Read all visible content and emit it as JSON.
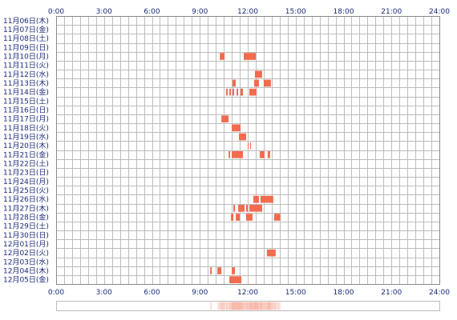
{
  "chart_data": {
    "type": "heatmap",
    "x_ticks": [
      "0:00",
      "3:00",
      "6:00",
      "9:00",
      "12:00",
      "15:00",
      "18:00",
      "21:00",
      "24:00"
    ],
    "xlim_hours": [
      0,
      24
    ],
    "grid": true,
    "bar_color": "#f26b4e",
    "summary_strip_color": "#f7b7a8",
    "rows": [
      {
        "label": "11月06日(木)",
        "blocks": []
      },
      {
        "label": "11月07日(金)",
        "blocks": []
      },
      {
        "label": "11月08日(土)",
        "blocks": []
      },
      {
        "label": "11月09日(日)",
        "blocks": []
      },
      {
        "label": "11月10日(月)",
        "blocks": [
          [
            10.25,
            10.55
          ],
          [
            11.75,
            12.5
          ]
        ]
      },
      {
        "label": "11月11日(火)",
        "blocks": []
      },
      {
        "label": "11月12日(水)",
        "blocks": [
          [
            12.45,
            12.9
          ]
        ]
      },
      {
        "label": "11月13日(木)",
        "blocks": [
          [
            11.05,
            11.25
          ],
          [
            12.4,
            12.7
          ],
          [
            13.0,
            13.45
          ]
        ]
      },
      {
        "label": "11月14日(金)",
        "blocks": [
          [
            10.65,
            10.75
          ],
          [
            10.85,
            10.95
          ],
          [
            11.05,
            11.15
          ],
          [
            11.3,
            11.4
          ],
          [
            11.55,
            11.7
          ],
          [
            12.1,
            12.55
          ]
        ]
      },
      {
        "label": "11月15日(土)",
        "blocks": []
      },
      {
        "label": "11月16日(日)",
        "blocks": []
      },
      {
        "label": "11月17日(月)",
        "blocks": [
          [
            10.35,
            10.8
          ]
        ]
      },
      {
        "label": "11月18日(火)",
        "blocks": [
          [
            11.0,
            11.55
          ]
        ]
      },
      {
        "label": "11月19日(水)",
        "blocks": [
          [
            11.45,
            11.9
          ]
        ]
      },
      {
        "label": "11月20日(木)",
        "blocks": [
          [
            12.0,
            12.05
          ],
          [
            12.15,
            12.2
          ]
        ]
      },
      {
        "label": "11月21日(金)",
        "blocks": [
          [
            10.8,
            10.9
          ],
          [
            11.0,
            11.7
          ],
          [
            12.75,
            13.05
          ],
          [
            13.25,
            13.4
          ]
        ]
      },
      {
        "label": "11月22日(土)",
        "blocks": []
      },
      {
        "label": "11月23日(日)",
        "blocks": []
      },
      {
        "label": "11月24日(月)",
        "blocks": []
      },
      {
        "label": "11月25日(火)",
        "blocks": []
      },
      {
        "label": "11月26日(水)",
        "blocks": [
          [
            12.35,
            12.7
          ],
          [
            12.8,
            13.6
          ]
        ]
      },
      {
        "label": "11月27日(木)",
        "blocks": [
          [
            11.1,
            11.2
          ],
          [
            11.4,
            11.8
          ],
          [
            11.9,
            12.0
          ],
          [
            12.1,
            12.9
          ]
        ]
      },
      {
        "label": "11月28日(金)",
        "blocks": [
          [
            10.95,
            11.1
          ],
          [
            11.25,
            11.5
          ],
          [
            11.9,
            12.3
          ],
          [
            13.65,
            14.05
          ]
        ]
      },
      {
        "label": "11月29日(土)",
        "blocks": []
      },
      {
        "label": "11月30日(日)",
        "blocks": []
      },
      {
        "label": "12月01日(月)",
        "blocks": []
      },
      {
        "label": "12月02日(火)",
        "blocks": [
          [
            13.2,
            13.75
          ]
        ]
      },
      {
        "label": "12月03日(水)",
        "blocks": []
      },
      {
        "label": "12月04日(木)",
        "blocks": [
          [
            9.65,
            9.75
          ],
          [
            10.1,
            10.35
          ],
          [
            11.0,
            11.2
          ]
        ]
      },
      {
        "label": "12月05日(金)",
        "blocks": [
          [
            10.85,
            11.6
          ]
        ]
      }
    ]
  }
}
